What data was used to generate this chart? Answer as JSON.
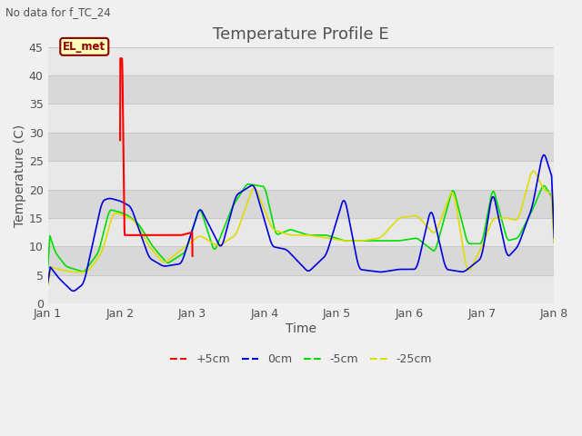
{
  "title": "Temperature Profile E",
  "top_left_text": "No data for f_TC_24",
  "annotation_text": "EL_met",
  "xlabel": "Time",
  "ylabel": "Temperature (C)",
  "ylim": [
    0,
    45
  ],
  "yticks": [
    0,
    5,
    10,
    15,
    20,
    25,
    30,
    35,
    40,
    45
  ],
  "xtick_labels": [
    "Jan 1",
    "Jan 2",
    "Jan 3",
    "Jan 4",
    "Jan 5",
    "Jan 6",
    "Jan 7",
    "Jan 8"
  ],
  "colors": {
    "+5cm": "#ff0000",
    "0cm": "#0000dd",
    "-5cm": "#00dd00",
    "-25cm": "#dddd00"
  },
  "band_colors": [
    "#e8e8e8",
    "#d8d8d8"
  ],
  "grid_line_color": "#c8c8c8",
  "title_color": "#505050",
  "axis_label_color": "#505050",
  "title_fontsize": 13,
  "axis_label_fontsize": 10,
  "tick_fontsize": 9,
  "figsize": [
    6.4,
    4.8
  ],
  "dpi": 100
}
